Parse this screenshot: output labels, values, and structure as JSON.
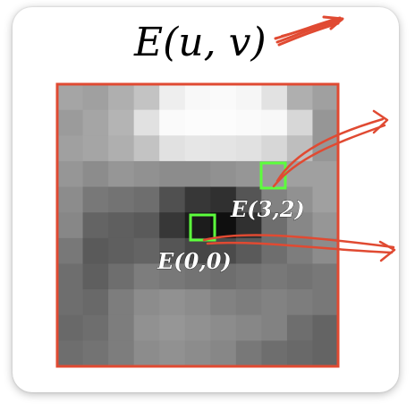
{
  "title": "E(u, v)",
  "labels": {
    "center": "E(0,0)",
    "offset": "E(3,2)"
  },
  "colors": {
    "frame": "#e04a32",
    "highlight": "#5cff3c",
    "ink": "#e04a32"
  },
  "grid": {
    "rows": 11,
    "cols": 11,
    "values": [
      [
        165,
        160,
        175,
        195,
        238,
        248,
        250,
        246,
        226,
        175,
        160
      ],
      [
        155,
        165,
        180,
        225,
        250,
        252,
        252,
        250,
        248,
        215,
        150
      ],
      [
        160,
        165,
        175,
        195,
        225,
        230,
        228,
        225,
        215,
        190,
        150
      ],
      [
        150,
        140,
        150,
        145,
        140,
        140,
        145,
        150,
        155,
        160,
        160
      ],
      [
        140,
        120,
        115,
        110,
        80,
        55,
        48,
        85,
        130,
        145,
        160
      ],
      [
        135,
        100,
        95,
        90,
        55,
        28,
        15,
        48,
        110,
        135,
        150
      ],
      [
        120,
        90,
        95,
        100,
        85,
        70,
        75,
        90,
        110,
        125,
        140
      ],
      [
        110,
        95,
        110,
        125,
        120,
        115,
        110,
        115,
        120,
        115,
        120
      ],
      [
        110,
        105,
        125,
        140,
        145,
        140,
        130,
        125,
        130,
        125,
        120
      ],
      [
        105,
        110,
        125,
        145,
        150,
        145,
        140,
        135,
        130,
        110,
        100
      ],
      [
        110,
        115,
        125,
        140,
        145,
        140,
        135,
        120,
        110,
        105,
        100
      ]
    ]
  }
}
